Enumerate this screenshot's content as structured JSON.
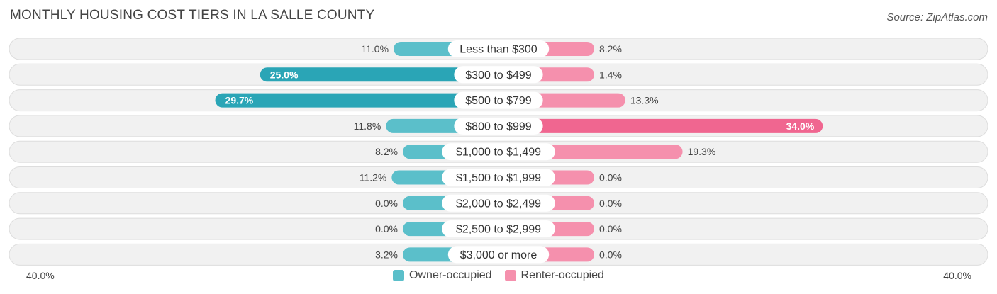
{
  "title": "MONTHLY HOUSING COST TIERS IN LA SALLE COUNTY",
  "source": "Source: ZipAtlas.com",
  "colors": {
    "owner": "#5bbfca",
    "owner_strong": "#2aa5b6",
    "renter": "#f590ad",
    "renter_strong": "#f06690"
  },
  "axis": {
    "left_label": "40.0%",
    "right_label": "40.0%"
  },
  "legend": {
    "owner_label": "Owner-occupied",
    "renter_label": "Renter-occupied"
  },
  "chart_data": {
    "type": "bar",
    "orientation": "diverging-horizontal",
    "categories": [
      "Less than $300",
      "$300 to $499",
      "$500 to $799",
      "$800 to $999",
      "$1,000 to $1,499",
      "$1,500 to $1,999",
      "$2,000 to $2,499",
      "$2,500 to $2,999",
      "$3,000 or more"
    ],
    "series": [
      {
        "name": "Owner-occupied",
        "values": [
          11.0,
          25.0,
          29.7,
          11.8,
          8.2,
          11.2,
          0.0,
          0.0,
          3.2
        ],
        "labels": [
          "11.0%",
          "25.0%",
          "29.7%",
          "11.8%",
          "8.2%",
          "11.2%",
          "0.0%",
          "0.0%",
          "3.2%"
        ]
      },
      {
        "name": "Renter-occupied",
        "values": [
          8.2,
          1.4,
          13.3,
          34.0,
          19.3,
          0.0,
          0.0,
          0.0,
          0.0
        ],
        "labels": [
          "8.2%",
          "1.4%",
          "13.3%",
          "34.0%",
          "19.3%",
          "0.0%",
          "0.0%",
          "0.0%",
          "0.0%"
        ]
      }
    ],
    "xlim": [
      -40,
      40
    ],
    "grid": false,
    "legend_position": "bottom-center"
  }
}
